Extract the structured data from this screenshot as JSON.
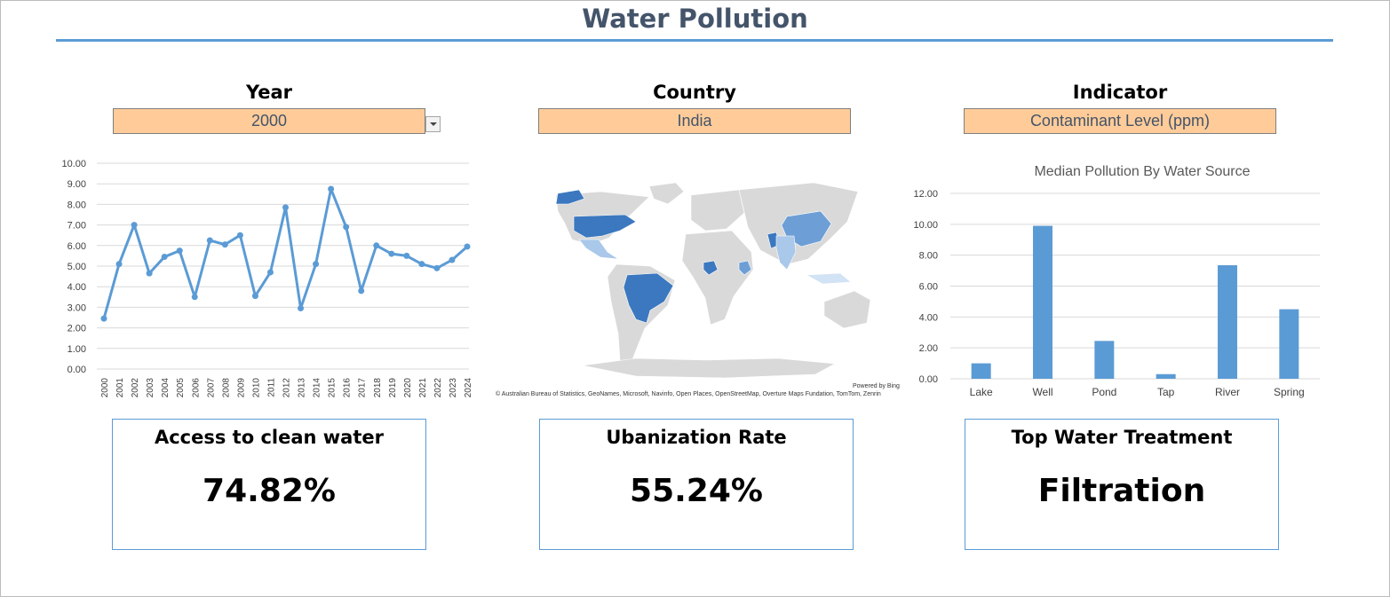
{
  "title": "Water Pollution",
  "filters": [
    {
      "label": "Year",
      "value": "2000"
    },
    {
      "label": "Country",
      "value": "India"
    },
    {
      "label": "Indicator",
      "value": "Contaminant Level (ppm)"
    }
  ],
  "map": {
    "powered_by": "Powered by Bing",
    "attribution": "© Australian Bureau of Statistics, GeoNames, Microsoft, Navinfo, Open Places, OpenStreetMap, Overture Maps Fundation, TomTom, Zenrin",
    "colors": {
      "land": "#d9d9d9",
      "dark": "#3b78bf",
      "mid": "#6d9fd6",
      "light": "#a9c8ea",
      "pale": "#d2e3f5"
    }
  },
  "kpis": [
    {
      "title": "Access to clean water",
      "value": "74.82%"
    },
    {
      "title": "Ubanization Rate",
      "value": "55.24%"
    },
    {
      "title": "Top Water Treatment",
      "value": "Filtration"
    }
  ],
  "colors": {
    "accent": "#5b9bd5",
    "title": "#44546a",
    "filter_bg": "#ffcc99"
  },
  "chart_data": [
    {
      "type": "line",
      "title": "",
      "x": [
        "2000",
        "2001",
        "2002",
        "2003",
        "2004",
        "2005",
        "2006",
        "2007",
        "2008",
        "2009",
        "2010",
        "2011",
        "2012",
        "2013",
        "2014",
        "2015",
        "2016",
        "2017",
        "2018",
        "2019",
        "2020",
        "2021",
        "2022",
        "2023",
        "2024"
      ],
      "values": [
        2.45,
        5.1,
        7.0,
        4.65,
        5.45,
        5.75,
        3.5,
        6.25,
        6.05,
        6.5,
        3.55,
        4.7,
        7.85,
        2.95,
        5.1,
        8.75,
        6.9,
        3.8,
        6.0,
        5.6,
        5.5,
        5.1,
        4.9,
        5.3,
        5.95
      ],
      "yticks": [
        "0.00",
        "1.00",
        "2.00",
        "3.00",
        "4.00",
        "5.00",
        "6.00",
        "7.00",
        "8.00",
        "9.00",
        "10.00"
      ],
      "ylim": [
        0,
        10
      ],
      "grid": true,
      "color": "#5b9bd5"
    },
    {
      "type": "bar",
      "title": "Median Pollution By Water Source",
      "categories": [
        "Lake",
        "Well",
        "Pond",
        "Tap",
        "River",
        "Spring"
      ],
      "values": [
        1.0,
        9.9,
        2.45,
        0.3,
        7.35,
        4.5
      ],
      "yticks": [
        "0.00",
        "2.00",
        "4.00",
        "6.00",
        "8.00",
        "10.00",
        "12.00"
      ],
      "ylim": [
        0,
        12
      ],
      "grid": true,
      "color": "#5b9bd5"
    }
  ]
}
